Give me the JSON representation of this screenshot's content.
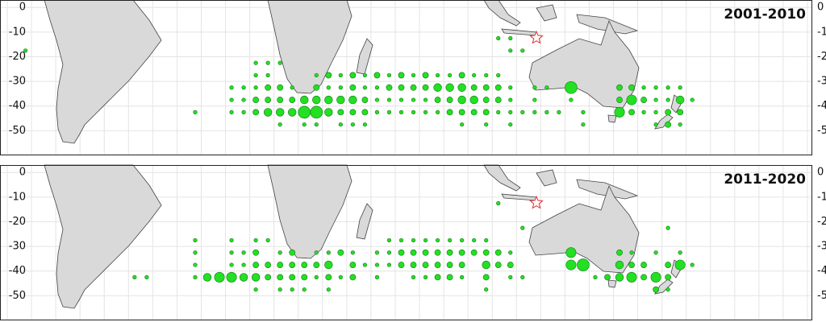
{
  "chart_data": {
    "type": "bubble-map",
    "xlim": [
      -103,
      232
    ],
    "ylim": [
      -60,
      3
    ],
    "yticks": [
      0,
      -10,
      -20,
      -30,
      -40,
      -50
    ],
    "color": "#22e022",
    "panels": [
      {
        "title": "2001-2010",
        "points": [
          [
            -92.5,
            -17.5,
            1
          ],
          [
            102.5,
            -12.5,
            1
          ],
          [
            107.5,
            -12.5,
            1
          ],
          [
            107.5,
            -17.5,
            1
          ],
          [
            112.5,
            -17.5,
            1
          ],
          [
            2.5,
            -22.5,
            1
          ],
          [
            7.5,
            -22.5,
            1
          ],
          [
            12.5,
            -22.5,
            1
          ],
          [
            2.5,
            -27.5,
            1
          ],
          [
            7.5,
            -27.5,
            1
          ],
          [
            27.5,
            -27.5,
            1
          ],
          [
            32.5,
            -27.5,
            2
          ],
          [
            37.5,
            -27.5,
            1
          ],
          [
            42.5,
            -27.5,
            2
          ],
          [
            47.5,
            -27.5,
            1
          ],
          [
            52.5,
            -27.5,
            2
          ],
          [
            57.5,
            -27.5,
            1
          ],
          [
            62.5,
            -27.5,
            2
          ],
          [
            67.5,
            -27.5,
            1
          ],
          [
            72.5,
            -27.5,
            2
          ],
          [
            77.5,
            -27.5,
            1
          ],
          [
            82.5,
            -27.5,
            1
          ],
          [
            87.5,
            -27.5,
            2
          ],
          [
            92.5,
            -27.5,
            1
          ],
          [
            97.5,
            -27.5,
            1
          ],
          [
            102.5,
            -27.5,
            1
          ],
          [
            -7.5,
            -32.5,
            1
          ],
          [
            -2.5,
            -32.5,
            1
          ],
          [
            2.5,
            -32.5,
            1
          ],
          [
            7.5,
            -32.5,
            2
          ],
          [
            12.5,
            -32.5,
            2
          ],
          [
            17.5,
            -32.5,
            1
          ],
          [
            27.5,
            -32.5,
            2
          ],
          [
            32.5,
            -32.5,
            1
          ],
          [
            37.5,
            -32.5,
            1
          ],
          [
            42.5,
            -32.5,
            2
          ],
          [
            47.5,
            -32.5,
            1
          ],
          [
            52.5,
            -32.5,
            1
          ],
          [
            57.5,
            -32.5,
            2
          ],
          [
            62.5,
            -32.5,
            2
          ],
          [
            67.5,
            -32.5,
            2
          ],
          [
            72.5,
            -32.5,
            2
          ],
          [
            77.5,
            -32.5,
            3
          ],
          [
            82.5,
            -32.5,
            3
          ],
          [
            87.5,
            -32.5,
            3
          ],
          [
            92.5,
            -32.5,
            2
          ],
          [
            97.5,
            -32.5,
            2
          ],
          [
            102.5,
            -32.5,
            2
          ],
          [
            107.5,
            -32.5,
            1
          ],
          [
            117.5,
            -32.5,
            1
          ],
          [
            122.5,
            -32.5,
            1
          ],
          [
            132.5,
            -32.5,
            5
          ],
          [
            152.5,
            -32.5,
            2
          ],
          [
            157.5,
            -32.5,
            2
          ],
          [
            162.5,
            -32.5,
            1
          ],
          [
            167.5,
            -32.5,
            1
          ],
          [
            172.5,
            -32.5,
            1
          ],
          [
            177.5,
            -32.5,
            1
          ],
          [
            -7.5,
            -37.5,
            1
          ],
          [
            -2.5,
            -37.5,
            1
          ],
          [
            2.5,
            -37.5,
            2
          ],
          [
            7.5,
            -37.5,
            2
          ],
          [
            12.5,
            -37.5,
            2
          ],
          [
            17.5,
            -37.5,
            2
          ],
          [
            22.5,
            -37.5,
            3
          ],
          [
            27.5,
            -37.5,
            3
          ],
          [
            32.5,
            -37.5,
            3
          ],
          [
            37.5,
            -37.5,
            3
          ],
          [
            42.5,
            -37.5,
            3
          ],
          [
            47.5,
            -37.5,
            2
          ],
          [
            52.5,
            -37.5,
            1
          ],
          [
            57.5,
            -37.5,
            1
          ],
          [
            62.5,
            -37.5,
            1
          ],
          [
            67.5,
            -37.5,
            1
          ],
          [
            72.5,
            -37.5,
            1
          ],
          [
            77.5,
            -37.5,
            2
          ],
          [
            82.5,
            -37.5,
            2
          ],
          [
            87.5,
            -37.5,
            3
          ],
          [
            92.5,
            -37.5,
            3
          ],
          [
            97.5,
            -37.5,
            2
          ],
          [
            102.5,
            -37.5,
            2
          ],
          [
            107.5,
            -37.5,
            1
          ],
          [
            117.5,
            -37.5,
            1
          ],
          [
            132.5,
            -37.5,
            1
          ],
          [
            152.5,
            -37.5,
            2
          ],
          [
            157.5,
            -37.5,
            4
          ],
          [
            162.5,
            -37.5,
            2
          ],
          [
            167.5,
            -37.5,
            1
          ],
          [
            172.5,
            -37.5,
            1
          ],
          [
            177.5,
            -37.5,
            3
          ],
          [
            182.5,
            -37.5,
            1
          ],
          [
            -22.5,
            -42.5,
            1
          ],
          [
            -7.5,
            -42.5,
            1
          ],
          [
            -2.5,
            -42.5,
            1
          ],
          [
            2.5,
            -42.5,
            2
          ],
          [
            7.5,
            -42.5,
            3
          ],
          [
            12.5,
            -42.5,
            3
          ],
          [
            17.5,
            -42.5,
            3
          ],
          [
            22.5,
            -42.5,
            5
          ],
          [
            27.5,
            -42.5,
            5
          ],
          [
            32.5,
            -42.5,
            3
          ],
          [
            37.5,
            -42.5,
            2
          ],
          [
            42.5,
            -42.5,
            2
          ],
          [
            47.5,
            -42.5,
            2
          ],
          [
            52.5,
            -42.5,
            1
          ],
          [
            57.5,
            -42.5,
            1
          ],
          [
            62.5,
            -42.5,
            1
          ],
          [
            67.5,
            -42.5,
            1
          ],
          [
            72.5,
            -42.5,
            1
          ],
          [
            77.5,
            -42.5,
            1
          ],
          [
            82.5,
            -42.5,
            2
          ],
          [
            87.5,
            -42.5,
            2
          ],
          [
            92.5,
            -42.5,
            2
          ],
          [
            97.5,
            -42.5,
            2
          ],
          [
            102.5,
            -42.5,
            1
          ],
          [
            107.5,
            -42.5,
            1
          ],
          [
            112.5,
            -42.5,
            1
          ],
          [
            117.5,
            -42.5,
            1
          ],
          [
            122.5,
            -42.5,
            1
          ],
          [
            127.5,
            -42.5,
            1
          ],
          [
            137.5,
            -42.5,
            1
          ],
          [
            152.5,
            -42.5,
            4
          ],
          [
            157.5,
            -42.5,
            2
          ],
          [
            162.5,
            -42.5,
            1
          ],
          [
            167.5,
            -42.5,
            1
          ],
          [
            172.5,
            -42.5,
            2
          ],
          [
            177.5,
            -42.5,
            2
          ],
          [
            12.5,
            -47.5,
            1
          ],
          [
            22.5,
            -47.5,
            1
          ],
          [
            27.5,
            -47.5,
            1
          ],
          [
            37.5,
            -47.5,
            1
          ],
          [
            42.5,
            -47.5,
            1
          ],
          [
            47.5,
            -47.5,
            1
          ],
          [
            87.5,
            -47.5,
            1
          ],
          [
            97.5,
            -47.5,
            1
          ],
          [
            107.5,
            -47.5,
            1
          ],
          [
            137.5,
            -47.5,
            1
          ],
          [
            167.5,
            -47.5,
            1
          ],
          [
            172.5,
            -47.5,
            2
          ],
          [
            177.5,
            -47.5,
            1
          ]
        ]
      },
      {
        "title": "2011-2020",
        "points": [
          [
            102.5,
            -12.5,
            1
          ],
          [
            112.5,
            -22.5,
            1
          ],
          [
            172.5,
            -22.5,
            1
          ],
          [
            -22.5,
            -27.5,
            1
          ],
          [
            -7.5,
            -27.5,
            1
          ],
          [
            2.5,
            -27.5,
            1
          ],
          [
            7.5,
            -27.5,
            1
          ],
          [
            57.5,
            -27.5,
            1
          ],
          [
            62.5,
            -27.5,
            1
          ],
          [
            67.5,
            -27.5,
            1
          ],
          [
            72.5,
            -27.5,
            1
          ],
          [
            77.5,
            -27.5,
            1
          ],
          [
            82.5,
            -27.5,
            1
          ],
          [
            87.5,
            -27.5,
            1
          ],
          [
            92.5,
            -27.5,
            1
          ],
          [
            97.5,
            -27.5,
            1
          ],
          [
            -22.5,
            -32.5,
            1
          ],
          [
            -7.5,
            -32.5,
            1
          ],
          [
            -2.5,
            -32.5,
            1
          ],
          [
            2.5,
            -32.5,
            2
          ],
          [
            12.5,
            -32.5,
            1
          ],
          [
            17.5,
            -32.5,
            2
          ],
          [
            27.5,
            -32.5,
            1
          ],
          [
            32.5,
            -32.5,
            1
          ],
          [
            37.5,
            -32.5,
            2
          ],
          [
            42.5,
            -32.5,
            1
          ],
          [
            52.5,
            -32.5,
            1
          ],
          [
            57.5,
            -32.5,
            1
          ],
          [
            62.5,
            -32.5,
            2
          ],
          [
            67.5,
            -32.5,
            2
          ],
          [
            72.5,
            -32.5,
            2
          ],
          [
            77.5,
            -32.5,
            2
          ],
          [
            82.5,
            -32.5,
            2
          ],
          [
            87.5,
            -32.5,
            2
          ],
          [
            92.5,
            -32.5,
            2
          ],
          [
            97.5,
            -32.5,
            2
          ],
          [
            102.5,
            -32.5,
            2
          ],
          [
            107.5,
            -32.5,
            1
          ],
          [
            132.5,
            -32.5,
            4
          ],
          [
            152.5,
            -32.5,
            2
          ],
          [
            157.5,
            -32.5,
            1
          ],
          [
            167.5,
            -32.5,
            1
          ],
          [
            177.5,
            -32.5,
            1
          ],
          [
            -22.5,
            -37.5,
            1
          ],
          [
            -7.5,
            -37.5,
            1
          ],
          [
            -2.5,
            -37.5,
            1
          ],
          [
            2.5,
            -37.5,
            2
          ],
          [
            7.5,
            -37.5,
            2
          ],
          [
            12.5,
            -37.5,
            2
          ],
          [
            17.5,
            -37.5,
            2
          ],
          [
            22.5,
            -37.5,
            2
          ],
          [
            27.5,
            -37.5,
            2
          ],
          [
            32.5,
            -37.5,
            3
          ],
          [
            42.5,
            -37.5,
            2
          ],
          [
            47.5,
            -37.5,
            1
          ],
          [
            52.5,
            -37.5,
            1
          ],
          [
            57.5,
            -37.5,
            1
          ],
          [
            62.5,
            -37.5,
            2
          ],
          [
            67.5,
            -37.5,
            2
          ],
          [
            72.5,
            -37.5,
            2
          ],
          [
            77.5,
            -37.5,
            2
          ],
          [
            82.5,
            -37.5,
            2
          ],
          [
            87.5,
            -37.5,
            2
          ],
          [
            97.5,
            -37.5,
            3
          ],
          [
            102.5,
            -37.5,
            2
          ],
          [
            107.5,
            -37.5,
            2
          ],
          [
            132.5,
            -37.5,
            4
          ],
          [
            137.5,
            -37.5,
            5
          ],
          [
            152.5,
            -37.5,
            3
          ],
          [
            157.5,
            -37.5,
            2
          ],
          [
            162.5,
            -37.5,
            2
          ],
          [
            172.5,
            -37.5,
            2
          ],
          [
            177.5,
            -37.5,
            4
          ],
          [
            182.5,
            -37.5,
            1
          ],
          [
            -47.5,
            -42.5,
            1
          ],
          [
            -42.5,
            -42.5,
            1
          ],
          [
            -22.5,
            -42.5,
            1
          ],
          [
            -17.5,
            -42.5,
            3
          ],
          [
            -12.5,
            -42.5,
            4
          ],
          [
            -7.5,
            -42.5,
            4
          ],
          [
            -2.5,
            -42.5,
            3
          ],
          [
            2.5,
            -42.5,
            3
          ],
          [
            7.5,
            -42.5,
            2
          ],
          [
            12.5,
            -42.5,
            2
          ],
          [
            17.5,
            -42.5,
            2
          ],
          [
            22.5,
            -42.5,
            2
          ],
          [
            27.5,
            -42.5,
            1
          ],
          [
            32.5,
            -42.5,
            2
          ],
          [
            37.5,
            -42.5,
            1
          ],
          [
            42.5,
            -42.5,
            2
          ],
          [
            52.5,
            -42.5,
            1
          ],
          [
            67.5,
            -42.5,
            1
          ],
          [
            72.5,
            -42.5,
            1
          ],
          [
            77.5,
            -42.5,
            2
          ],
          [
            82.5,
            -42.5,
            2
          ],
          [
            87.5,
            -42.5,
            1
          ],
          [
            97.5,
            -42.5,
            2
          ],
          [
            107.5,
            -42.5,
            1
          ],
          [
            112.5,
            -42.5,
            1
          ],
          [
            142.5,
            -42.5,
            1
          ],
          [
            147.5,
            -42.5,
            2
          ],
          [
            152.5,
            -42.5,
            3
          ],
          [
            157.5,
            -42.5,
            4
          ],
          [
            162.5,
            -42.5,
            2
          ],
          [
            167.5,
            -42.5,
            4
          ],
          [
            172.5,
            -42.5,
            2
          ],
          [
            2.5,
            -47.5,
            1
          ],
          [
            12.5,
            -47.5,
            1
          ],
          [
            17.5,
            -47.5,
            1
          ],
          [
            22.5,
            -47.5,
            1
          ],
          [
            32.5,
            -47.5,
            1
          ],
          [
            97.5,
            -47.5,
            1
          ],
          [
            167.5,
            -47.5,
            2
          ],
          [
            172.5,
            -47.5,
            1
          ]
        ]
      }
    ]
  }
}
